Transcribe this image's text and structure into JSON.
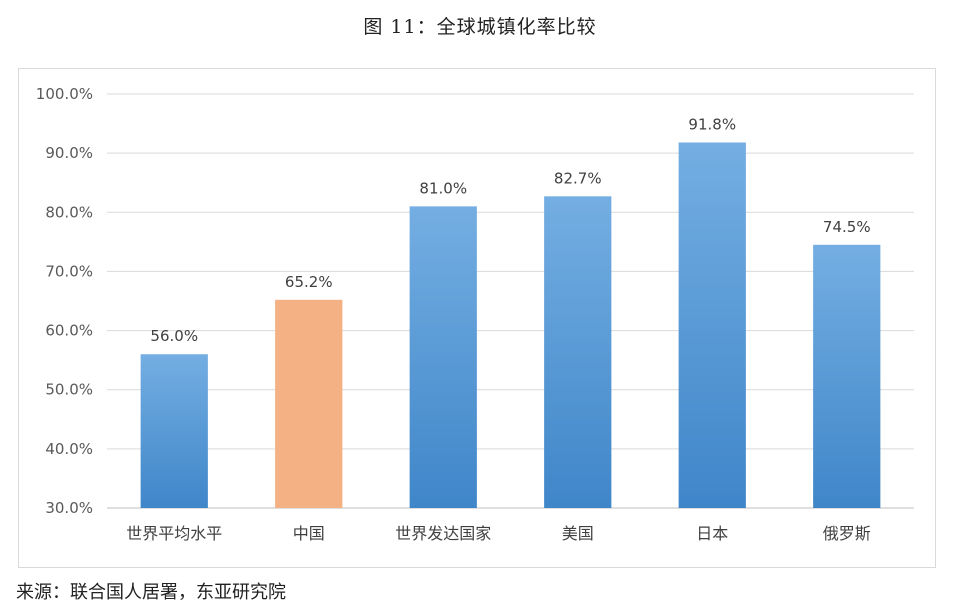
{
  "figure": {
    "title": "图 11：全球城镇化率比较",
    "source": "来源：联合国人居署，东亚研究院"
  },
  "colors": {
    "default_bar_top": "#74aee2",
    "default_bar_bottom": "#3f86c9",
    "highlight_bar": "#f4b183",
    "gridline": "#d9d9d9",
    "axis_line": "#bfbfbf"
  },
  "chart_data": {
    "type": "bar",
    "categories": [
      "世界平均水平",
      "中国",
      "世界发达国家",
      "美国",
      "日本",
      "俄罗斯"
    ],
    "values": [
      56.0,
      65.2,
      81.0,
      82.7,
      91.8,
      74.5
    ],
    "data_labels": [
      "56.0%",
      "65.2%",
      "81.0%",
      "82.7%",
      "91.8%",
      "74.5%"
    ],
    "highlight_index": 1,
    "ylim": [
      30,
      100
    ],
    "yticks": [
      30,
      40,
      50,
      60,
      70,
      80,
      90,
      100
    ],
    "ytick_labels": [
      "30.0%",
      "40.0%",
      "50.0%",
      "60.0%",
      "70.0%",
      "80.0%",
      "90.0%",
      "100.0%"
    ],
    "grid": true,
    "legend": "none",
    "title": "",
    "xlabel": "",
    "ylabel": ""
  }
}
